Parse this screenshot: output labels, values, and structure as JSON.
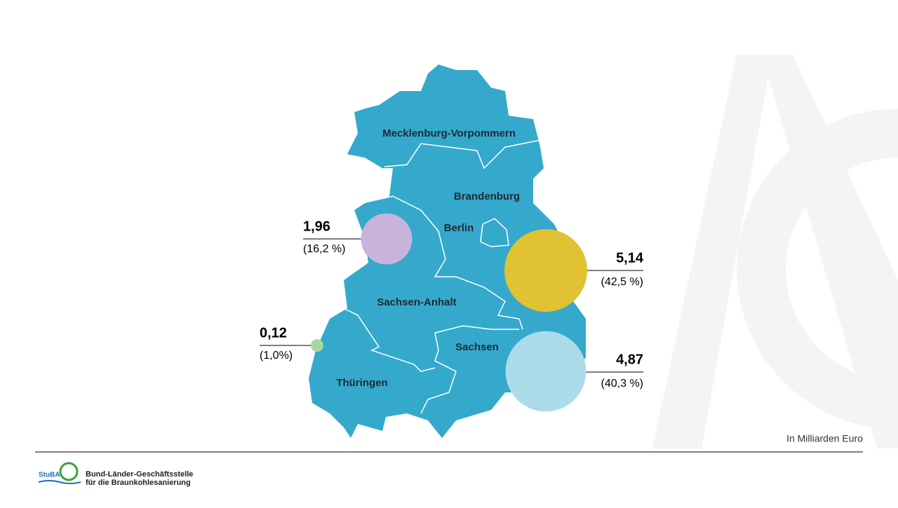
{
  "map": {
    "regions": [
      "Mecklenburg-Vorpommern",
      "Brandenburg",
      "Berlin",
      "Sachsen-Anhalt",
      "Sachsen",
      "Thüringen"
    ],
    "bubbles": [
      {
        "value": 1.96,
        "label": "1,96",
        "share": 16.2,
        "share_label": "(16,2 %)",
        "color": "#c8b4da"
      },
      {
        "value": 0.12,
        "label": "0,12",
        "share": 1.0,
        "share_label": "(1,0%)",
        "color": "#a6d8a4"
      },
      {
        "value": 5.14,
        "label": "5,14",
        "share": 42.5,
        "share_label": "(42,5 %)",
        "color": "#e0c232"
      },
      {
        "value": 4.87,
        "label": "4,87",
        "share": 40.3,
        "share_label": "(40,3 %)",
        "color": "#acdcea"
      }
    ],
    "unit_note": "In Milliarden Euro"
  },
  "footer": {
    "logo": "StuBA",
    "org_line1": "Bund-Länder-Geschäftsstelle",
    "org_line2": "für die Braunkohlesanierung"
  }
}
